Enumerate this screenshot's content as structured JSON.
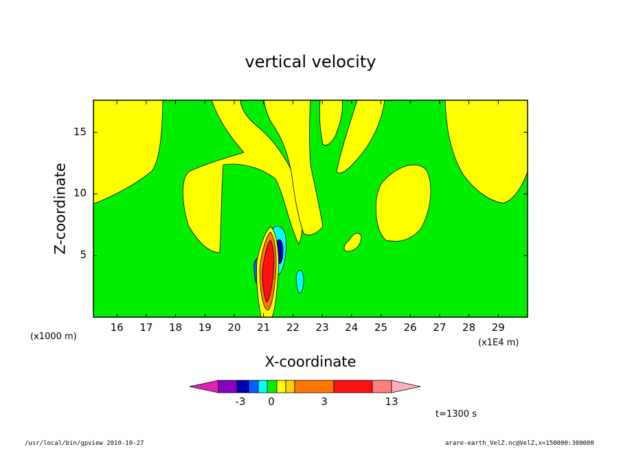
{
  "chart_data": {
    "type": "heatmap",
    "title": "vertical velocity",
    "xlabel": "X-coordinate",
    "ylabel": "Z-coordinate",
    "x_units_note": "(x1E4 m)",
    "y_units_note": "(x1000 m)",
    "xlim": [
      15.2,
      30.0
    ],
    "ylim": [
      0.0,
      17.6
    ],
    "x_ticks": [
      16,
      17,
      18,
      19,
      20,
      21,
      22,
      23,
      24,
      25,
      26,
      27,
      28,
      29
    ],
    "y_ticks": [
      5,
      10,
      15
    ],
    "time_label": "t=1300 s",
    "colorbar": {
      "levels": [
        -7,
        -5,
        -3,
        -2,
        -1,
        0,
        1,
        2,
        3,
        8,
        13
      ],
      "tick_labels": [
        "-3",
        "0",
        "3",
        "13"
      ],
      "colors": [
        "#e020b0",
        "#8800c0",
        "#0000b0",
        "#0060ff",
        "#00ffff",
        "#00ee00",
        "#ffff00",
        "#ffd000",
        "#ff7700",
        "#ff1010",
        "#ff8080",
        "#ffb0c0"
      ]
    },
    "background_level_color": "#00ee00",
    "positive_region_color": "#ffff00"
  },
  "footer": {
    "left": "/usr/local/bin/gpview  2010-10-27",
    "right": "arare-earth_VelZ.nc@VelZ,x=150000:300000"
  }
}
